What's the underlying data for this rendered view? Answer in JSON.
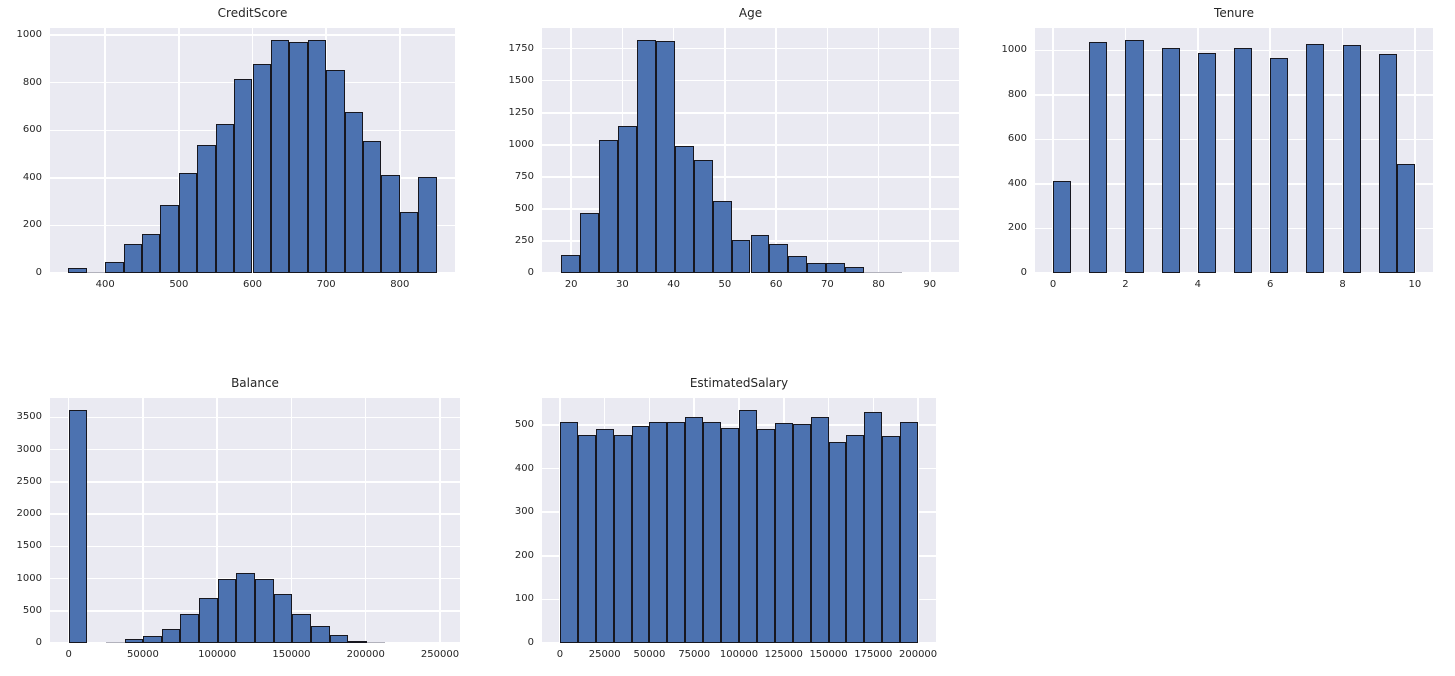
{
  "figure": {
    "background": "#ffffff",
    "panel_background": "#eaeaf2",
    "grid_color": "#ffffff",
    "bar_fill": "#4c72b0",
    "bar_edge": "#17171f",
    "tiny_bar_color": "#b2b2bc",
    "text_color": "#262626"
  },
  "chart_data": [
    {
      "type": "bar",
      "title": "CreditScore",
      "xlabel": "",
      "ylabel": "",
      "bin_start": 350,
      "bin_width": 25,
      "values": [
        20,
        3,
        48,
        122,
        165,
        285,
        420,
        540,
        628,
        815,
        880,
        980,
        970,
        980,
        853,
        675,
        555,
        412,
        255,
        405
      ],
      "xlim": [
        325,
        875
      ],
      "ylim": [
        0,
        1030
      ],
      "xticks": [
        400,
        500,
        600,
        700,
        800
      ],
      "yticks": [
        0,
        200,
        400,
        600,
        800,
        1000
      ],
      "grid": true,
      "legend": "none"
    },
    {
      "type": "bar",
      "title": "Age",
      "xlabel": "",
      "ylabel": "",
      "bin_start": 18,
      "bin_width": 3.7,
      "values": [
        140,
        465,
        1035,
        1145,
        1820,
        1810,
        990,
        885,
        565,
        255,
        295,
        225,
        130,
        75,
        75,
        45,
        12,
        5,
        0,
        0
      ],
      "xlim": [
        14.3,
        95.7
      ],
      "ylim": [
        0,
        1911
      ],
      "xticks": [
        20,
        30,
        40,
        50,
        60,
        70,
        80,
        90
      ],
      "yticks": [
        0,
        250,
        500,
        750,
        1000,
        1250,
        1500,
        1750
      ],
      "grid": true,
      "legend": "none"
    },
    {
      "type": "bar",
      "title": "Tenure",
      "xlabel": "",
      "ylabel": "",
      "bin_start": 0,
      "bin_width": 0.5,
      "values": [
        413,
        0,
        1035,
        0,
        1048,
        0,
        1009,
        0,
        989,
        0,
        1012,
        0,
        967,
        0,
        1028,
        0,
        1025,
        0,
        984,
        490
      ],
      "xlim": [
        -0.5,
        10.5
      ],
      "ylim": [
        0,
        1100
      ],
      "xticks": [
        0,
        2,
        4,
        6,
        8,
        10
      ],
      "yticks": [
        0,
        200,
        400,
        600,
        800,
        1000
      ],
      "grid": true,
      "legend": "none"
    },
    {
      "type": "bar",
      "title": "Balance",
      "xlabel": "",
      "ylabel": "",
      "bin_start": 0,
      "bin_width": 12545,
      "values": [
        3620,
        0,
        12,
        58,
        115,
        215,
        450,
        700,
        1000,
        1080,
        1000,
        755,
        450,
        265,
        128,
        35,
        20,
        3,
        0,
        0
      ],
      "xlim": [
        -12545,
        263445
      ],
      "ylim": [
        0,
        3800
      ],
      "xticks": [
        0,
        50000,
        100000,
        150000,
        200000,
        250000
      ],
      "yticks": [
        0,
        500,
        1000,
        1500,
        2000,
        2500,
        3000,
        3500
      ],
      "grid": true,
      "legend": "none"
    },
    {
      "type": "bar",
      "title": "EstimatedSalary",
      "xlabel": "",
      "ylabel": "",
      "bin_start": 0,
      "bin_width": 10000,
      "values": [
        508,
        477,
        491,
        477,
        497,
        508,
        506,
        519,
        508,
        493,
        535,
        491,
        504,
        502,
        519,
        462,
        477,
        531,
        475,
        508
      ],
      "xlim": [
        -10000,
        210000
      ],
      "ylim": [
        0,
        562
      ],
      "xticks": [
        0,
        25000,
        50000,
        75000,
        100000,
        125000,
        150000,
        175000,
        200000
      ],
      "yticks": [
        0,
        100,
        200,
        300,
        400,
        500
      ],
      "grid": true,
      "legend": "none"
    }
  ]
}
